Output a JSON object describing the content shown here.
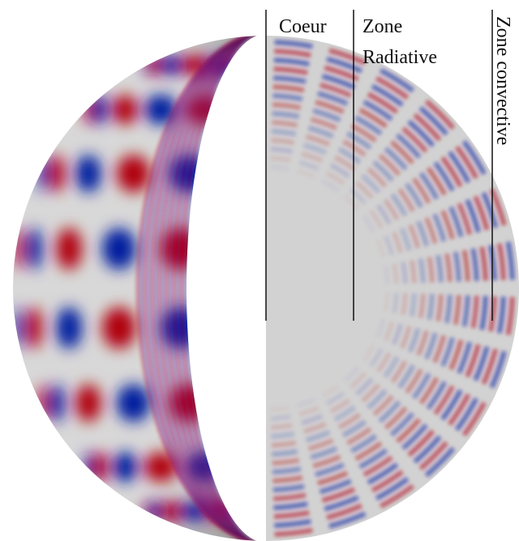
{
  "labels": {
    "core": "Coeur",
    "radiative": [
      "Zone",
      "Radiative"
    ],
    "convective": "Zone convective"
  }
}
